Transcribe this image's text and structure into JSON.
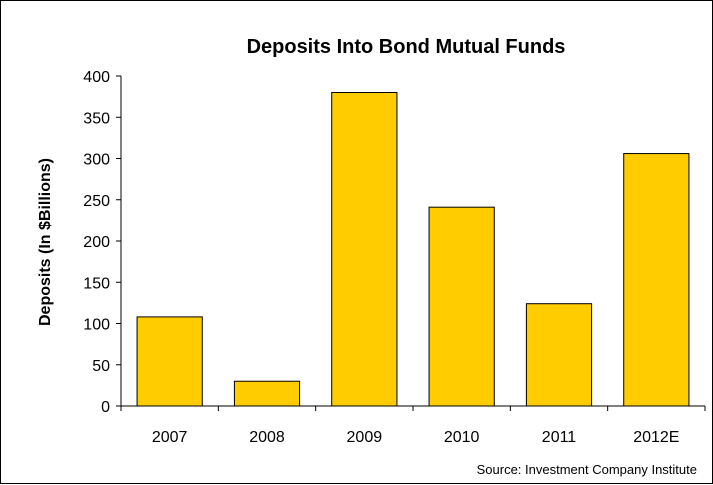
{
  "chart_data": {
    "type": "bar",
    "title": "Deposits Into Bond Mutual Funds",
    "ylabel": "Deposits (In $Billions)",
    "xlabel": "",
    "categories": [
      "2007",
      "2008",
      "2009",
      "2010",
      "2011",
      "2012E"
    ],
    "values": [
      108,
      30,
      380,
      241,
      124,
      306
    ],
    "ylim": [
      0,
      400
    ],
    "yticks": [
      "0",
      "50",
      "100",
      "150",
      "200",
      "250",
      "300",
      "350",
      "400"
    ],
    "bar_color": "#FFCC00",
    "grid": false,
    "source": "Source: Investment Company Institute"
  }
}
